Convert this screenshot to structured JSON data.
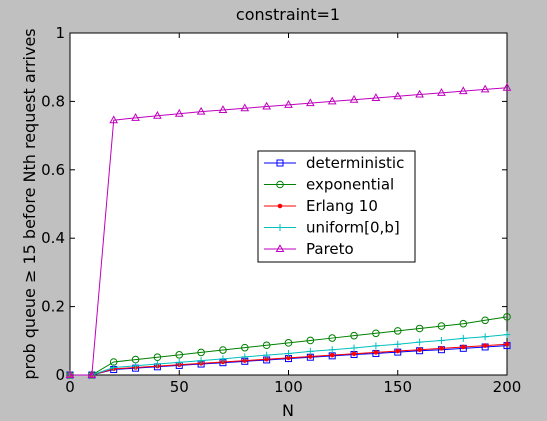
{
  "chart_data": {
    "type": "line",
    "title": "constraint=1",
    "xlabel": "N",
    "ylabel": "prob queue ≥ 15 before Nth request arrives",
    "xlim": [
      0,
      200
    ],
    "ylim": [
      0,
      1
    ],
    "xticks": [
      0,
      50,
      100,
      150,
      200
    ],
    "yticks": [
      0,
      0.2,
      0.4,
      0.6,
      0.8,
      1
    ],
    "ytick_labels": [
      "0",
      "0.2",
      "0.4",
      "0.6",
      "0.8",
      "1"
    ],
    "grid": false,
    "legend_position": "center-right",
    "x": [
      0,
      10,
      20,
      30,
      40,
      50,
      60,
      70,
      80,
      90,
      100,
      110,
      120,
      130,
      140,
      150,
      160,
      170,
      180,
      190,
      200
    ],
    "series": [
      {
        "name": "deterministic",
        "color": "#0000ff",
        "marker": "square",
        "values": [
          0,
          0,
          0.016,
          0.02,
          0.024,
          0.028,
          0.032,
          0.036,
          0.04,
          0.044,
          0.048,
          0.052,
          0.056,
          0.06,
          0.063,
          0.067,
          0.071,
          0.074,
          0.078,
          0.082,
          0.086
        ]
      },
      {
        "name": "exponential",
        "color": "#008000",
        "marker": "circle",
        "values": [
          0,
          0,
          0.038,
          0.045,
          0.052,
          0.059,
          0.066,
          0.073,
          0.08,
          0.087,
          0.094,
          0.101,
          0.108,
          0.115,
          0.122,
          0.129,
          0.136,
          0.143,
          0.15,
          0.16,
          0.17
        ]
      },
      {
        "name": "Erlang 10",
        "color": "#ff0000",
        "marker": "dot",
        "values": [
          0,
          0,
          0.018,
          0.022,
          0.026,
          0.03,
          0.034,
          0.038,
          0.042,
          0.046,
          0.05,
          0.054,
          0.058,
          0.062,
          0.066,
          0.07,
          0.074,
          0.078,
          0.082,
          0.086,
          0.09
        ]
      },
      {
        "name": "uniform[0,b]",
        "color": "#00bfbf",
        "marker": "plus",
        "values": [
          0,
          0,
          0.022,
          0.027,
          0.032,
          0.037,
          0.042,
          0.047,
          0.053,
          0.058,
          0.063,
          0.069,
          0.074,
          0.079,
          0.085,
          0.09,
          0.096,
          0.101,
          0.107,
          0.112,
          0.118
        ]
      },
      {
        "name": "Pareto",
        "color": "#bf00bf",
        "marker": "triangle",
        "values": [
          0,
          0,
          0.745,
          0.752,
          0.758,
          0.764,
          0.77,
          0.775,
          0.78,
          0.785,
          0.79,
          0.795,
          0.8,
          0.805,
          0.81,
          0.815,
          0.82,
          0.825,
          0.83,
          0.835,
          0.84
        ]
      }
    ]
  }
}
